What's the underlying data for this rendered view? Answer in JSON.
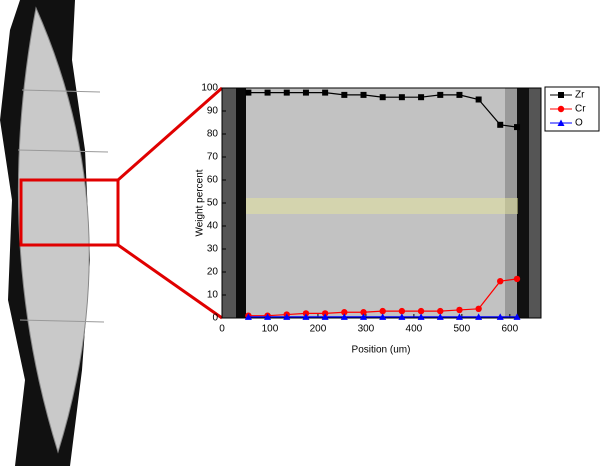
{
  "chart_data": {
    "type": "line",
    "xlabel": "Position (um)",
    "ylabel": "Weight percent",
    "x": [
      55,
      95,
      135,
      175,
      215,
      255,
      295,
      335,
      375,
      415,
      455,
      495,
      535,
      580,
      615
    ],
    "series": [
      {
        "name": "Zr",
        "color": "#000000",
        "marker": "square",
        "values": [
          98,
          98,
          98,
          98,
          98,
          97,
          97,
          96,
          96,
          96,
          97,
          97,
          95,
          84,
          83
        ]
      },
      {
        "name": "Cr",
        "color": "#ff0000",
        "marker": "circle",
        "values": [
          1,
          1,
          1.5,
          2,
          2,
          2.5,
          2.5,
          3,
          3,
          3,
          3,
          3.5,
          4,
          16,
          17
        ]
      },
      {
        "name": "O",
        "color": "#0000ff",
        "marker": "triangle",
        "values": [
          0.5,
          0.5,
          0.5,
          0.5,
          0.5,
          0.5,
          0.5,
          0.5,
          0.5,
          0.5,
          0.5,
          0.5,
          0.5,
          0.5,
          0.5
        ]
      }
    ],
    "xlim": [
      0,
      665
    ],
    "xticks": [
      0,
      100,
      200,
      300,
      400,
      500,
      600
    ],
    "ylim": [
      0,
      100
    ],
    "yticks": [
      0,
      10,
      20,
      30,
      40,
      50,
      60,
      70,
      80,
      90,
      100
    ],
    "legend": "outside-right"
  }
}
